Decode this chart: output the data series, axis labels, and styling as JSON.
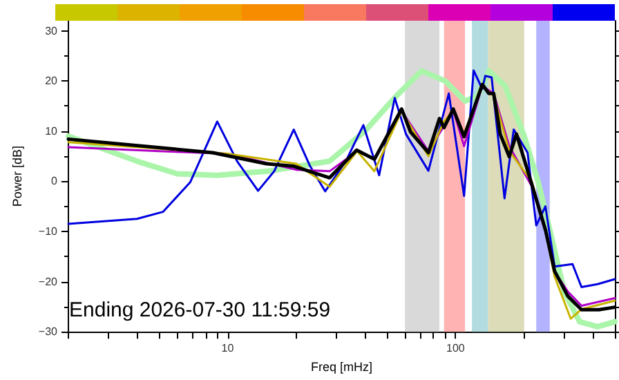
{
  "chart_data": {
    "type": "line",
    "xlabel": "Freq [mHz]",
    "ylabel": "Power [dB]",
    "annotations": [
      "Ending 2026-07-30 11:59:59"
    ],
    "log": "x",
    "grid": false,
    "marker": "none",
    "line_style": "solid",
    "xlim": [
      2,
      500
    ],
    "ylim": [
      -30,
      32
    ],
    "xticks": [
      {
        "value": 2,
        "label": null
      },
      {
        "value": 3,
        "label": null
      },
      {
        "value": 4,
        "label": null
      },
      {
        "value": 5,
        "label": null
      },
      {
        "value": 6,
        "label": null
      },
      {
        "value": 7,
        "label": null
      },
      {
        "value": 8,
        "label": null
      },
      {
        "value": 9,
        "label": null
      },
      10,
      {
        "value": 20,
        "label": null
      },
      {
        "value": 30,
        "label": null
      },
      {
        "value": 40,
        "label": null
      },
      {
        "value": 50,
        "label": null
      },
      {
        "value": 60,
        "label": null
      },
      {
        "value": 70,
        "label": null
      },
      {
        "value": 80,
        "label": null
      },
      {
        "value": 90,
        "label": null
      },
      100,
      {
        "value": 200,
        "label": null
      },
      {
        "value": 300,
        "label": null
      },
      {
        "value": 400,
        "label": null
      },
      {
        "value": 500,
        "label": null
      }
    ],
    "yticks": [
      -30,
      -20,
      -10,
      0,
      10,
      20,
      30
    ],
    "bands": [
      {
        "axis": "x",
        "from": 60,
        "to": 85,
        "color": "#d9d9d9"
      },
      {
        "axis": "x",
        "from": 89,
        "to": 110,
        "color": "#ffb3b3"
      },
      {
        "axis": "x",
        "from": 118,
        "to": 139,
        "color": "#b3dce0"
      },
      {
        "axis": "x",
        "from": 139,
        "to": 200,
        "color": "#dcdcb8"
      },
      {
        "axis": "x",
        "from": 226,
        "to": 259,
        "color": "#b3b3ff"
      }
    ],
    "series": [
      {
        "color": "#aaf5aa",
        "x": [
          2,
          4,
          6,
          9,
          15,
          28,
          40,
          55,
          71,
          90,
          110,
          125,
          140,
          165,
          200,
          230,
          260,
          300,
          350,
          420,
          500
        ],
        "values": [
          9,
          4,
          1.5,
          1.2,
          2,
          4,
          10,
          17,
          22,
          20,
          16,
          17,
          22,
          19,
          9,
          0,
          -10,
          -22,
          -28,
          -29,
          -28
        ]
      },
      {
        "color": "#0000e0",
        "x": [
          2,
          4,
          5.2,
          6.85,
          9,
          11,
          13.6,
          16,
          19.5,
          23,
          26.8,
          33,
          39.4,
          46.2,
          54.1,
          60.6,
          76,
          93.4,
          109,
          120,
          131,
          135,
          144,
          164,
          180,
          207,
          226,
          248,
          272,
          326,
          357,
          420,
          500
        ],
        "values": [
          -8.5,
          -7.5,
          -6.1,
          -0.2,
          11.9,
          4,
          -1.9,
          2,
          10.3,
          3,
          -2,
          4,
          11.2,
          1.2,
          16.6,
          9.4,
          2.1,
          17.5,
          -2.9,
          22.1,
          18.4,
          21,
          20.7,
          -3.4,
          10.3,
          5.7,
          -8.8,
          -5,
          -17,
          -16.5,
          -21.1,
          -20.5,
          -19.5
        ]
      },
      {
        "color": "#b000c8",
        "x": [
          2,
          5,
          10,
          20,
          28,
          37,
          44,
          58,
          76,
          89,
          98,
          109,
          131,
          147,
          172,
          216,
          248,
          272,
          311,
          357,
          500
        ],
        "values": [
          6.8,
          6,
          5.5,
          2.3,
          2,
          6,
          4.4,
          14,
          6,
          11,
          14,
          7,
          19,
          17.5,
          7,
          -1,
          -10,
          -18,
          -22,
          -24.8,
          -23.3
        ]
      },
      {
        "color": "#c8b400",
        "x": [
          2,
          5,
          10,
          20,
          28,
          37,
          44,
          58,
          76,
          89,
          98,
          109,
          131,
          147,
          172,
          216,
          248,
          272,
          320,
          357,
          500
        ],
        "values": [
          7.8,
          6.5,
          5.5,
          3.5,
          -1.1,
          6,
          2,
          14,
          5,
          12,
          14,
          9.5,
          19,
          17,
          6,
          0,
          -10,
          -19,
          -27.4,
          -25.5,
          -23.8
        ]
      },
      {
        "color": "#000000",
        "x": [
          2,
          8.6,
          14.8,
          19.5,
          28,
          36.8,
          44.1,
          58,
          63.5,
          76,
          85,
          89,
          97.7,
          109,
          131,
          140,
          147,
          157,
          172,
          185,
          216,
          248,
          272,
          311,
          357,
          426,
          500
        ],
        "values": [
          8.4,
          5.7,
          3.5,
          3,
          0.7,
          6.2,
          4.4,
          14.4,
          9.8,
          5.7,
          12.5,
          10.7,
          14.4,
          8.9,
          19.3,
          17.5,
          17.5,
          9.4,
          4.9,
          9.4,
          -0.6,
          -9.7,
          -17.9,
          -22.9,
          -25.6,
          -25.6,
          -25.1
        ]
      }
    ]
  }
}
